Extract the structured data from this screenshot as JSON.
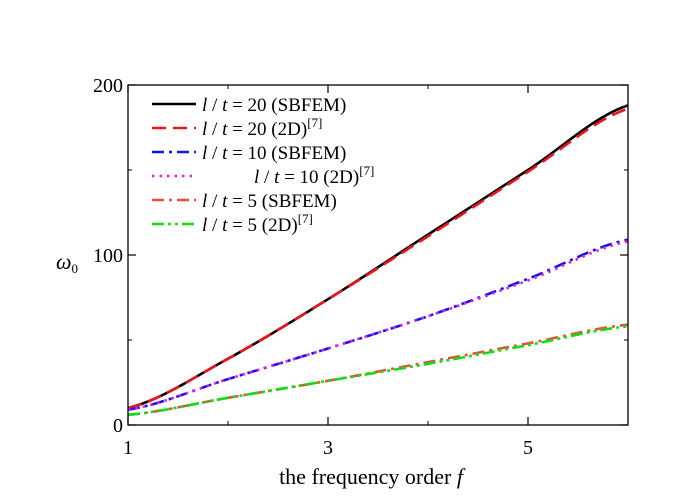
{
  "chart_data": {
    "type": "line",
    "title": "",
    "xlabel": "the frequency order f",
    "xlabel_text": "the frequency order",
    "xlabel_var": "f",
    "ylabel": "ω0",
    "ylabel_symbol": "ω",
    "ylabel_subscript": "0",
    "xlim": [
      1,
      6
    ],
    "ylim": [
      0,
      200
    ],
    "x_ticks": [
      1,
      3,
      5
    ],
    "x_tick_labels": [
      "1",
      "3",
      "5"
    ],
    "y_ticks": [
      0,
      100,
      200
    ],
    "y_tick_labels": [
      "0",
      "100",
      "200"
    ],
    "grid": false,
    "legend_position": "top-left",
    "x": [
      1,
      2,
      3,
      4,
      5,
      6
    ],
    "series": [
      {
        "name": "l / t = 20 (SBFEM)",
        "legend_var1": "l",
        "legend_sep": "/",
        "legend_var2": "t",
        "legend_value": "= 20 (SBFEM)",
        "legend_ref": "",
        "color": "#000000",
        "dash": "solid",
        "values": [
          10,
          39,
          74,
          112,
          150,
          188
        ]
      },
      {
        "name": "l / t = 20 (2D)[7]",
        "legend_var1": "l",
        "legend_sep": "/",
        "legend_var2": "t",
        "legend_value": "= 20 (2D)",
        "legend_ref": "[7]",
        "color": "#e8141e",
        "dash": "dashed",
        "values": [
          10,
          39,
          74,
          111,
          149,
          186
        ]
      },
      {
        "name": "l / t = 10 (SBFEM)",
        "legend_var1": "l",
        "legend_sep": "/",
        "legend_var2": "t",
        "legend_value": "= 10 (SBFEM)",
        "legend_ref": "",
        "color": "#1414e6",
        "dash": "dashdot",
        "values": [
          9,
          27,
          45,
          64,
          86,
          109
        ]
      },
      {
        "name": "l / t = 10 (2D)[7]",
        "legend_var1": "l",
        "legend_sep": "/",
        "legend_var2": "t",
        "legend_value": "= 10 (2D)",
        "legend_ref": "[7]",
        "color": "#e61ee6",
        "dash": "dotted",
        "values": [
          9,
          27,
          45,
          64,
          85,
          108
        ]
      },
      {
        "name": "l / t = 5 (SBFEM)",
        "legend_var1": "l",
        "legend_sep": "/",
        "legend_var2": "t",
        "legend_value": "= 5 (SBFEM)",
        "legend_ref": "",
        "color": "#e6503c",
        "dash": "dashdot",
        "values": [
          6,
          16,
          26,
          37,
          48,
          59
        ]
      },
      {
        "name": "l / t = 5 (2D)[7]",
        "legend_var1": "l",
        "legend_sep": "/",
        "legend_var2": "t",
        "legend_value": "= 5 (2D)",
        "legend_ref": "[7]",
        "color": "#14dc14",
        "dash": "dashdotdot",
        "values": [
          6,
          16,
          26,
          36,
          47,
          58
        ]
      }
    ]
  }
}
